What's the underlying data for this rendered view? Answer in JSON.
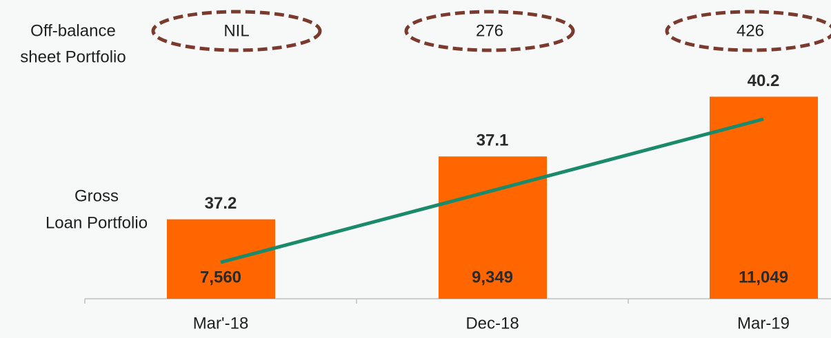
{
  "chart_data": {
    "type": "bar",
    "categories": [
      "Mar'-18",
      "Dec-18",
      "Mar-19"
    ],
    "series": [
      {
        "name": "Gross Loan Portfolio",
        "name_lines": [
          "Gross",
          "Loan Portfolio"
        ],
        "color": "#ff6600",
        "values": [
          7560,
          9349,
          11049
        ],
        "value_labels": [
          "7,560",
          "9,349",
          "11,049"
        ]
      }
    ],
    "top_labels": [
      37.2,
      37.1,
      40.2
    ],
    "off_balance": {
      "name_lines": [
        "Off-balance",
        "sheet Portfolio"
      ],
      "labels": [
        "NIL",
        "276",
        "426"
      ]
    },
    "ylim": [
      5300,
      13800
    ]
  }
}
